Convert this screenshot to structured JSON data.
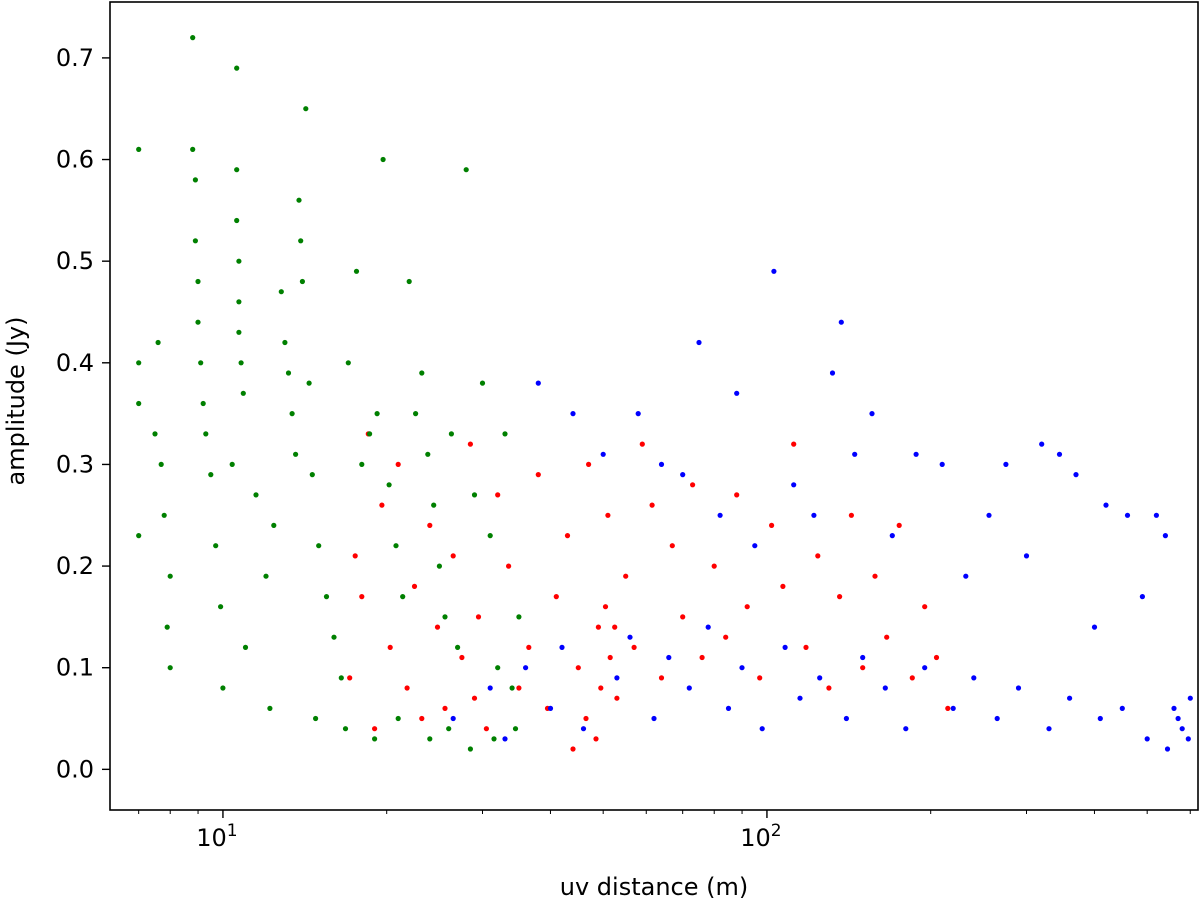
{
  "chart_data": {
    "type": "scatter",
    "title": "",
    "xlabel": "uv distance (m)",
    "ylabel": "amplitude (Jy)",
    "xscale": "log",
    "xlim": [
      6.2,
      620
    ],
    "ylim": [
      -0.04,
      0.755
    ],
    "grid": false,
    "legend": "none",
    "x_ticks": [
      {
        "value": 10,
        "base": "10",
        "exp": "1"
      },
      {
        "value": 100,
        "base": "10",
        "exp": "2"
      }
    ],
    "x_minor_ticks": [
      7,
      8,
      9,
      20,
      30,
      40,
      50,
      60,
      70,
      80,
      90,
      200,
      300,
      400,
      500,
      600
    ],
    "y_ticks": [
      {
        "value": 0.0,
        "label": "0.0"
      },
      {
        "value": 0.1,
        "label": "0.1"
      },
      {
        "value": 0.2,
        "label": "0.2"
      },
      {
        "value": 0.3,
        "label": "0.3"
      },
      {
        "value": 0.4,
        "label": "0.4"
      },
      {
        "value": 0.5,
        "label": "0.5"
      },
      {
        "value": 0.6,
        "label": "0.6"
      },
      {
        "value": 0.7,
        "label": "0.7"
      }
    ],
    "series": [
      {
        "color": "#ff0000",
        "points": [
          [
            17.1,
            0.09
          ],
          [
            17.5,
            0.21
          ],
          [
            18.0,
            0.17
          ],
          [
            18.5,
            0.33
          ],
          [
            19.0,
            0.04
          ],
          [
            19.6,
            0.26
          ],
          [
            20.3,
            0.12
          ],
          [
            21.0,
            0.3
          ],
          [
            21.8,
            0.08
          ],
          [
            22.5,
            0.18
          ],
          [
            23.2,
            0.05
          ],
          [
            24.0,
            0.24
          ],
          [
            24.8,
            0.14
          ],
          [
            25.6,
            0.06
          ],
          [
            26.5,
            0.21
          ],
          [
            27.5,
            0.11
          ],
          [
            28.5,
            0.32
          ],
          [
            29.5,
            0.15
          ],
          [
            30.5,
            0.04
          ],
          [
            32.0,
            0.27
          ],
          [
            33.5,
            0.2
          ],
          [
            35.0,
            0.08
          ],
          [
            36.5,
            0.12
          ],
          [
            38.0,
            0.29
          ],
          [
            39.5,
            0.06
          ],
          [
            41.0,
            0.17
          ],
          [
            43.0,
            0.23
          ],
          [
            45.0,
            0.1
          ],
          [
            47.0,
            0.3
          ],
          [
            49.0,
            0.14
          ],
          [
            51.0,
            0.25
          ],
          [
            53.0,
            0.07
          ],
          [
            55.0,
            0.19
          ],
          [
            57.0,
            0.12
          ],
          [
            59.0,
            0.32
          ],
          [
            61.5,
            0.26
          ],
          [
            64.0,
            0.09
          ],
          [
            67.0,
            0.22
          ],
          [
            70.0,
            0.15
          ],
          [
            73.0,
            0.28
          ],
          [
            76.0,
            0.11
          ],
          [
            80.0,
            0.2
          ],
          [
            84.0,
            0.13
          ],
          [
            88.0,
            0.27
          ],
          [
            92.0,
            0.16
          ],
          [
            97.0,
            0.09
          ],
          [
            102.0,
            0.24
          ],
          [
            107.0,
            0.18
          ],
          [
            112.0,
            0.32
          ],
          [
            118.0,
            0.12
          ],
          [
            124.0,
            0.21
          ],
          [
            130.0,
            0.08
          ],
          [
            136.0,
            0.17
          ],
          [
            143.0,
            0.25
          ],
          [
            150.0,
            0.1
          ],
          [
            158.0,
            0.19
          ],
          [
            166.0,
            0.13
          ],
          [
            175.0,
            0.24
          ],
          [
            185.0,
            0.09
          ],
          [
            195.0,
            0.16
          ],
          [
            205.0,
            0.11
          ],
          [
            215.0,
            0.06
          ],
          [
            46.5,
            0.05
          ],
          [
            49.5,
            0.08
          ],
          [
            51.5,
            0.11
          ],
          [
            52.5,
            0.14
          ],
          [
            48.5,
            0.03
          ],
          [
            50.5,
            0.16
          ],
          [
            44.0,
            0.02
          ],
          [
            29.0,
            0.07
          ]
        ]
      },
      {
        "color": "#0000ff",
        "points": [
          [
            38.0,
            0.38
          ],
          [
            44.0,
            0.35
          ],
          [
            50.0,
            0.31
          ],
          [
            58.0,
            0.35
          ],
          [
            64.0,
            0.3
          ],
          [
            70.0,
            0.29
          ],
          [
            75.0,
            0.42
          ],
          [
            82.0,
            0.25
          ],
          [
            88.0,
            0.37
          ],
          [
            95.0,
            0.22
          ],
          [
            103.0,
            0.49
          ],
          [
            112.0,
            0.28
          ],
          [
            122.0,
            0.25
          ],
          [
            132.0,
            0.39
          ],
          [
            137.0,
            0.44
          ],
          [
            145.0,
            0.31
          ],
          [
            156.0,
            0.35
          ],
          [
            170.0,
            0.23
          ],
          [
            188.0,
            0.31
          ],
          [
            210.0,
            0.3
          ],
          [
            232.0,
            0.19
          ],
          [
            256.0,
            0.25
          ],
          [
            275.0,
            0.3
          ],
          [
            300.0,
            0.21
          ],
          [
            320.0,
            0.32
          ],
          [
            345.0,
            0.31
          ],
          [
            370.0,
            0.29
          ],
          [
            400.0,
            0.14
          ],
          [
            420.0,
            0.26
          ],
          [
            460.0,
            0.25
          ],
          [
            490.0,
            0.17
          ],
          [
            520.0,
            0.25
          ],
          [
            540.0,
            0.23
          ],
          [
            560.0,
            0.06
          ],
          [
            580.0,
            0.04
          ],
          [
            600.0,
            0.07
          ],
          [
            36.0,
            0.1
          ],
          [
            40.0,
            0.06
          ],
          [
            42.0,
            0.12
          ],
          [
            46.0,
            0.04
          ],
          [
            53.0,
            0.09
          ],
          [
            56.0,
            0.13
          ],
          [
            62.0,
            0.05
          ],
          [
            66.0,
            0.11
          ],
          [
            72.0,
            0.08
          ],
          [
            78.0,
            0.14
          ],
          [
            85.0,
            0.06
          ],
          [
            90.0,
            0.1
          ],
          [
            98.0,
            0.04
          ],
          [
            108.0,
            0.12
          ],
          [
            115.0,
            0.07
          ],
          [
            125.0,
            0.09
          ],
          [
            140.0,
            0.05
          ],
          [
            150.0,
            0.11
          ],
          [
            165.0,
            0.08
          ],
          [
            180.0,
            0.04
          ],
          [
            195.0,
            0.1
          ],
          [
            220.0,
            0.06
          ],
          [
            240.0,
            0.09
          ],
          [
            265.0,
            0.05
          ],
          [
            290.0,
            0.08
          ],
          [
            330.0,
            0.04
          ],
          [
            360.0,
            0.07
          ],
          [
            410.0,
            0.05
          ],
          [
            450.0,
            0.06
          ],
          [
            500.0,
            0.03
          ],
          [
            545.0,
            0.02
          ],
          [
            570.0,
            0.05
          ],
          [
            595.0,
            0.03
          ],
          [
            26.5,
            0.05
          ],
          [
            31.0,
            0.08
          ],
          [
            33.0,
            0.03
          ]
        ]
      },
      {
        "color": "#008000",
        "points": [
          [
            7.0,
            0.61
          ],
          [
            7.0,
            0.4
          ],
          [
            7.0,
            0.36
          ],
          [
            7.0,
            0.23
          ],
          [
            7.5,
            0.33
          ],
          [
            7.6,
            0.42
          ],
          [
            7.7,
            0.3
          ],
          [
            7.8,
            0.25
          ],
          [
            7.9,
            0.14
          ],
          [
            8.0,
            0.1
          ],
          [
            8.0,
            0.19
          ],
          [
            8.8,
            0.72
          ],
          [
            8.8,
            0.61
          ],
          [
            8.9,
            0.58
          ],
          [
            8.9,
            0.52
          ],
          [
            9.0,
            0.48
          ],
          [
            9.0,
            0.44
          ],
          [
            9.1,
            0.4
          ],
          [
            9.2,
            0.36
          ],
          [
            9.3,
            0.33
          ],
          [
            9.5,
            0.29
          ],
          [
            9.7,
            0.22
          ],
          [
            9.9,
            0.16
          ],
          [
            10.0,
            0.08
          ],
          [
            10.4,
            0.3
          ],
          [
            10.6,
            0.69
          ],
          [
            10.6,
            0.59
          ],
          [
            10.6,
            0.54
          ],
          [
            10.7,
            0.5
          ],
          [
            10.7,
            0.46
          ],
          [
            10.7,
            0.43
          ],
          [
            10.8,
            0.4
          ],
          [
            10.9,
            0.37
          ],
          [
            11.0,
            0.12
          ],
          [
            11.5,
            0.27
          ],
          [
            12.0,
            0.19
          ],
          [
            12.4,
            0.24
          ],
          [
            12.8,
            0.47
          ],
          [
            13.0,
            0.42
          ],
          [
            13.2,
            0.39
          ],
          [
            13.4,
            0.35
          ],
          [
            13.6,
            0.31
          ],
          [
            13.8,
            0.56
          ],
          [
            13.9,
            0.52
          ],
          [
            14.0,
            0.48
          ],
          [
            14.2,
            0.65
          ],
          [
            14.4,
            0.38
          ],
          [
            14.6,
            0.29
          ],
          [
            15.0,
            0.22
          ],
          [
            15.5,
            0.17
          ],
          [
            16.0,
            0.13
          ],
          [
            16.5,
            0.09
          ],
          [
            17.0,
            0.4
          ],
          [
            17.6,
            0.49
          ],
          [
            18.0,
            0.3
          ],
          [
            18.6,
            0.33
          ],
          [
            19.2,
            0.35
          ],
          [
            19.7,
            0.6
          ],
          [
            20.2,
            0.28
          ],
          [
            20.8,
            0.22
          ],
          [
            21.4,
            0.17
          ],
          [
            22.0,
            0.48
          ],
          [
            22.6,
            0.35
          ],
          [
            23.2,
            0.39
          ],
          [
            23.8,
            0.31
          ],
          [
            24.4,
            0.26
          ],
          [
            25.0,
            0.2
          ],
          [
            25.6,
            0.15
          ],
          [
            26.3,
            0.33
          ],
          [
            27.0,
            0.12
          ],
          [
            28.0,
            0.59
          ],
          [
            29.0,
            0.27
          ],
          [
            30.0,
            0.38
          ],
          [
            31.0,
            0.23
          ],
          [
            32.0,
            0.1
          ],
          [
            33.0,
            0.33
          ],
          [
            34.0,
            0.08
          ],
          [
            35.0,
            0.15
          ],
          [
            12.2,
            0.06
          ],
          [
            14.8,
            0.05
          ],
          [
            16.8,
            0.04
          ],
          [
            19.0,
            0.03
          ],
          [
            21.0,
            0.05
          ],
          [
            24.0,
            0.03
          ],
          [
            26.0,
            0.04
          ],
          [
            28.5,
            0.02
          ],
          [
            31.5,
            0.03
          ],
          [
            34.5,
            0.04
          ]
        ]
      }
    ]
  }
}
